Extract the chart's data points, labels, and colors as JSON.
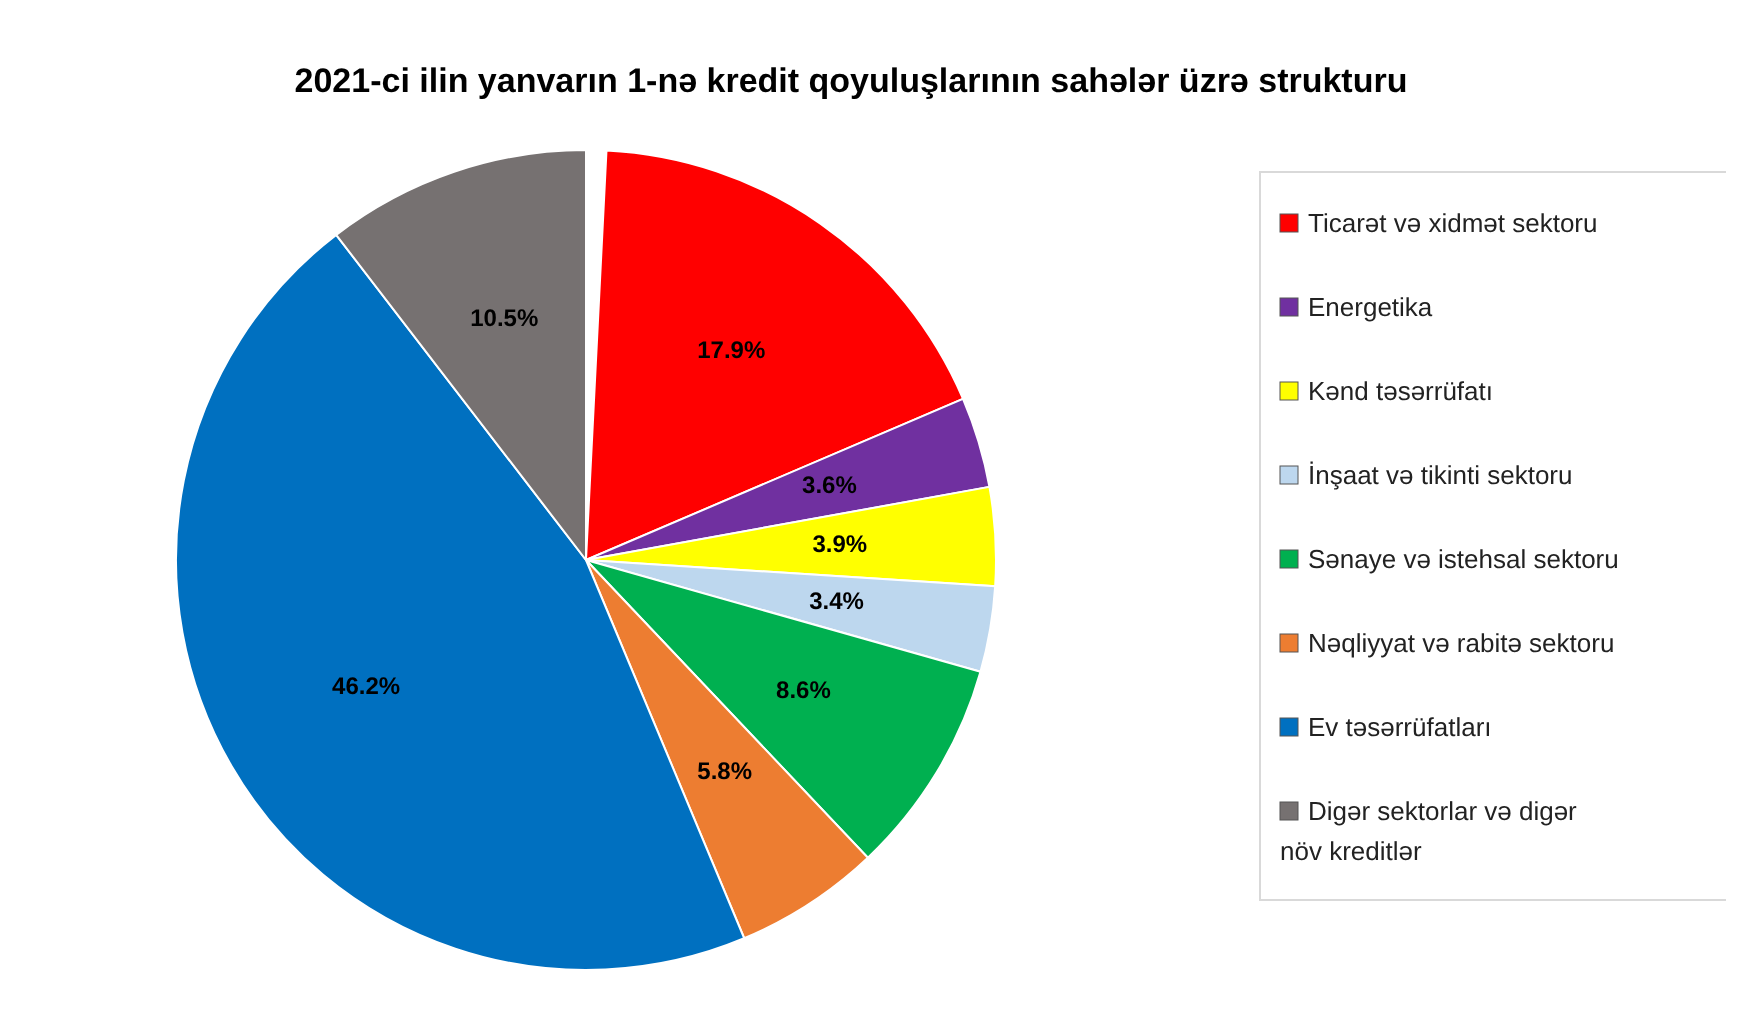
{
  "chart_data": {
    "type": "pie",
    "title": "2021-ci ilin yanvarın 1-nə kredit qoyuluşlarının sahələr üzrə strukturu",
    "categories": [
      "Ticarət və xidmət sektoru",
      "Energetika",
      "Kənd təsərrüfatı",
      "İnşaat və tikinti sektoru",
      "Sənaye və istehsal sektoru",
      "Nəqliyyat və rabitə sektoru",
      "Ev təsərrüfatları",
      "Digər sektorlar və digər növ kreditlər"
    ],
    "values": [
      17.9,
      3.6,
      3.9,
      3.4,
      8.6,
      5.8,
      46.2,
      10.5
    ],
    "value_labels": [
      "17.9%",
      "3.6%",
      "3.9%",
      "3.4%",
      "8.6%",
      "5.8%",
      "46.2%",
      "10.5%"
    ],
    "colors": [
      "#ff0000",
      "#7030a0",
      "#ffff00",
      "#bdd7ee",
      "#00b050",
      "#ed7d31",
      "#0070c0",
      "#767171"
    ],
    "legend": "right"
  }
}
